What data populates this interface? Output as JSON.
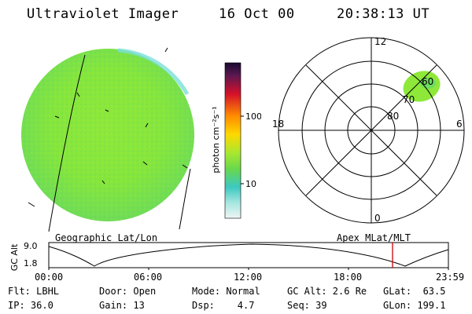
{
  "header": {
    "instrument": "Ultraviolet Imager",
    "date": "16 Oct 00",
    "time": "20:38:13 UT"
  },
  "colorbar": {
    "unit_label": "photon cm⁻²s⁻¹",
    "ticks": [
      "100",
      "10"
    ],
    "scale": "log"
  },
  "polar_plot": {
    "labels": {
      "top": "12",
      "left": "18",
      "right": "6",
      "bottom": "0"
    },
    "ring_labels": [
      "60",
      "70",
      "80"
    ]
  },
  "timeline": {
    "left_title": "Geographic Lat/Lon",
    "right_title": "Apex MLat/MLT",
    "axis_label": "GC Alt",
    "y_max": "9.0",
    "y_min": "1.8",
    "time_ticks": [
      "00:00",
      "06:00",
      "12:00",
      "18:00",
      "23:59"
    ],
    "marker_color": "#cc0000"
  },
  "status": {
    "row1": {
      "flt": "Flt: LBHL",
      "door": "Door: Open",
      "mode": "Mode: Normal",
      "gcalt": "GC Alt: 2.6 Re",
      "glat": "GLat:  63.5"
    },
    "row2": {
      "ip": "IP: 36.0",
      "gain": "Gain: 13",
      "dsp": "Dsp:    4.7",
      "seq": "Seq: 39",
      "glon": "GLon: 199.1"
    }
  }
}
